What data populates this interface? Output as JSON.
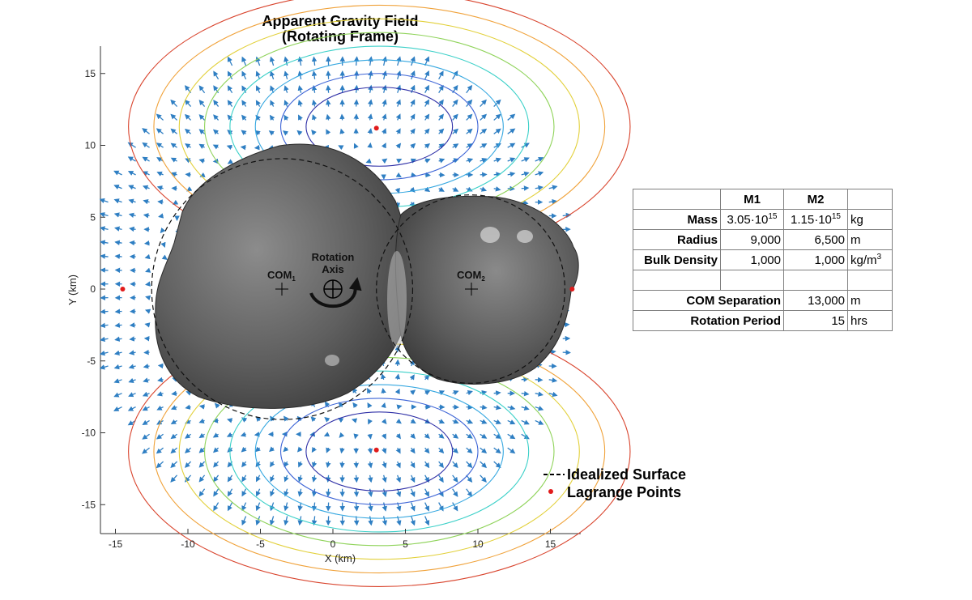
{
  "chart_data": {
    "type": "vector field with contours",
    "title": [
      "Apparent Gravity Field",
      "(Rotating Frame)"
    ],
    "xlabel": "X (km)",
    "ylabel": "Y (km)",
    "xlim": [
      -16.5,
      17
    ],
    "ylim": [
      -17,
      17
    ],
    "xticks": [
      -15,
      -10,
      -5,
      0,
      5,
      10,
      15
    ],
    "yticks": [
      -15,
      -10,
      -5,
      0,
      5,
      10,
      15
    ],
    "xtick_labels": [
      "-15",
      "-10",
      "-5",
      "0",
      "5",
      "10",
      "15"
    ],
    "ytick_labels": [
      "-15",
      "-10",
      "-5",
      "0",
      "5",
      "10",
      "15"
    ],
    "bodies": [
      {
        "name": "M1",
        "cx": -3.5,
        "cy": 0,
        "radius_km": 9.0
      },
      {
        "name": "M2",
        "cx": 9.5,
        "cy": 0,
        "radius_km": 6.5
      }
    ],
    "com_labels": [
      {
        "text": "COM",
        "sub": "1",
        "x": -3.5,
        "y": 0
      },
      {
        "text": "COM",
        "sub": "2",
        "x": 9.5,
        "y": 0
      }
    ],
    "rotation_axis_label": [
      "Rotation",
      "Axis"
    ],
    "lagrange_points": [
      {
        "x": 3.0,
        "y": 11.2
      },
      {
        "x": 3.0,
        "y": -11.2
      },
      {
        "x": -14.5,
        "y": 0
      },
      {
        "x": 16.5,
        "y": 0
      }
    ],
    "legend": [
      {
        "marker": "---",
        "label": "Idealized Surface"
      },
      {
        "marker": "dot",
        "label": "Lagrange Points"
      }
    ],
    "contour_colors": [
      "#2d2ea6",
      "#3d64d6",
      "#35a7e0",
      "#3bd0c8",
      "#8fd35a",
      "#e2d03a",
      "#f0a23a",
      "#d9452e"
    ],
    "arrow_color": "#2f7fc3",
    "lagrange_color": "#e11b1b"
  },
  "table": {
    "headers": [
      "",
      "M1",
      "M2",
      ""
    ],
    "rows": [
      {
        "label": "Mass",
        "m1_base": "3.05·10",
        "m1_exp": "15",
        "m2_base": "1.15·10",
        "m2_exp": "15",
        "unit": "kg"
      },
      {
        "label": "Radius",
        "m1": "9,000",
        "m2": "6,500",
        "unit": "m"
      },
      {
        "label": "Bulk Density",
        "m1": "1,000",
        "m2": "1,000",
        "unit_base": "kg/m",
        "unit_exp": "3"
      },
      {
        "label": "",
        "m1": "",
        "m2": "",
        "unit": ""
      },
      {
        "label": "COM Separation",
        "value": "13,000",
        "unit": "m"
      },
      {
        "label": "Rotation Period",
        "value": "15",
        "unit": "hrs"
      }
    ]
  }
}
